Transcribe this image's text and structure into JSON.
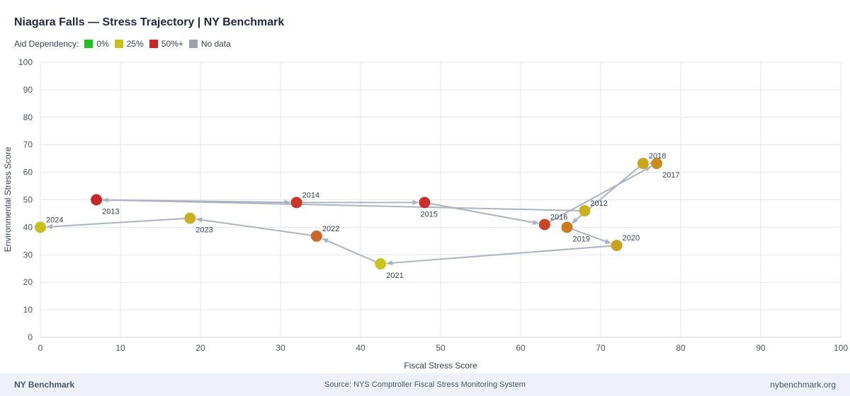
{
  "title": "Niagara Falls — Stress Trajectory | NY Benchmark",
  "legend": {
    "label": "Aid Dependency:",
    "items": [
      {
        "label": "0%",
        "color": "#22c022"
      },
      {
        "label": "25%",
        "color": "#c8c020"
      },
      {
        "label": "50%+",
        "color": "#c62828"
      },
      {
        "label": "No data",
        "color": "#9ca3af"
      }
    ]
  },
  "chart_data": {
    "type": "scatter",
    "xlabel": "Fiscal Stress Score",
    "ylabel": "Environmental Stress Score",
    "xlim": [
      0,
      100
    ],
    "ylim": [
      0,
      100
    ],
    "xticks": [
      0,
      10,
      20,
      30,
      40,
      50,
      60,
      70,
      80,
      90,
      100
    ],
    "yticks": [
      0,
      10,
      20,
      30,
      40,
      50,
      60,
      70,
      80,
      90,
      100
    ],
    "grid": true,
    "connected": "chronological arrows",
    "points": [
      {
        "year": "2012",
        "x": 68,
        "y": 46,
        "color": "#c9b020"
      },
      {
        "year": "2013",
        "x": 7,
        "y": 50,
        "color": "#c62828"
      },
      {
        "year": "2014",
        "x": 32,
        "y": 49,
        "color": "#c8372a"
      },
      {
        "year": "2015",
        "x": 48,
        "y": 49,
        "color": "#c8302a"
      },
      {
        "year": "2016",
        "x": 63,
        "y": 41,
        "color": "#c84628"
      },
      {
        "year": "2017",
        "x": 77,
        "y": 63.2,
        "color": "#cc8c22"
      },
      {
        "year": "2018",
        "x": 75.3,
        "y": 63.2,
        "color": "#c9a520"
      },
      {
        "year": "2019",
        "x": 65.8,
        "y": 40,
        "color": "#cc7a22"
      },
      {
        "year": "2020",
        "x": 72,
        "y": 33.4,
        "color": "#c9a020"
      },
      {
        "year": "2021",
        "x": 42.5,
        "y": 26.7,
        "color": "#c9c520"
      },
      {
        "year": "2022",
        "x": 34.5,
        "y": 36.8,
        "color": "#c8682a"
      },
      {
        "year": "2023",
        "x": 18.7,
        "y": 43.3,
        "color": "#c9b020"
      },
      {
        "year": "2024",
        "x": 0,
        "y": 40,
        "color": "#c8c020"
      }
    ]
  },
  "footer": {
    "brand": "NY Benchmark",
    "source": "Source: NYS Comptroller Fiscal Stress Monitoring System",
    "site": "nybenchmark.org"
  }
}
